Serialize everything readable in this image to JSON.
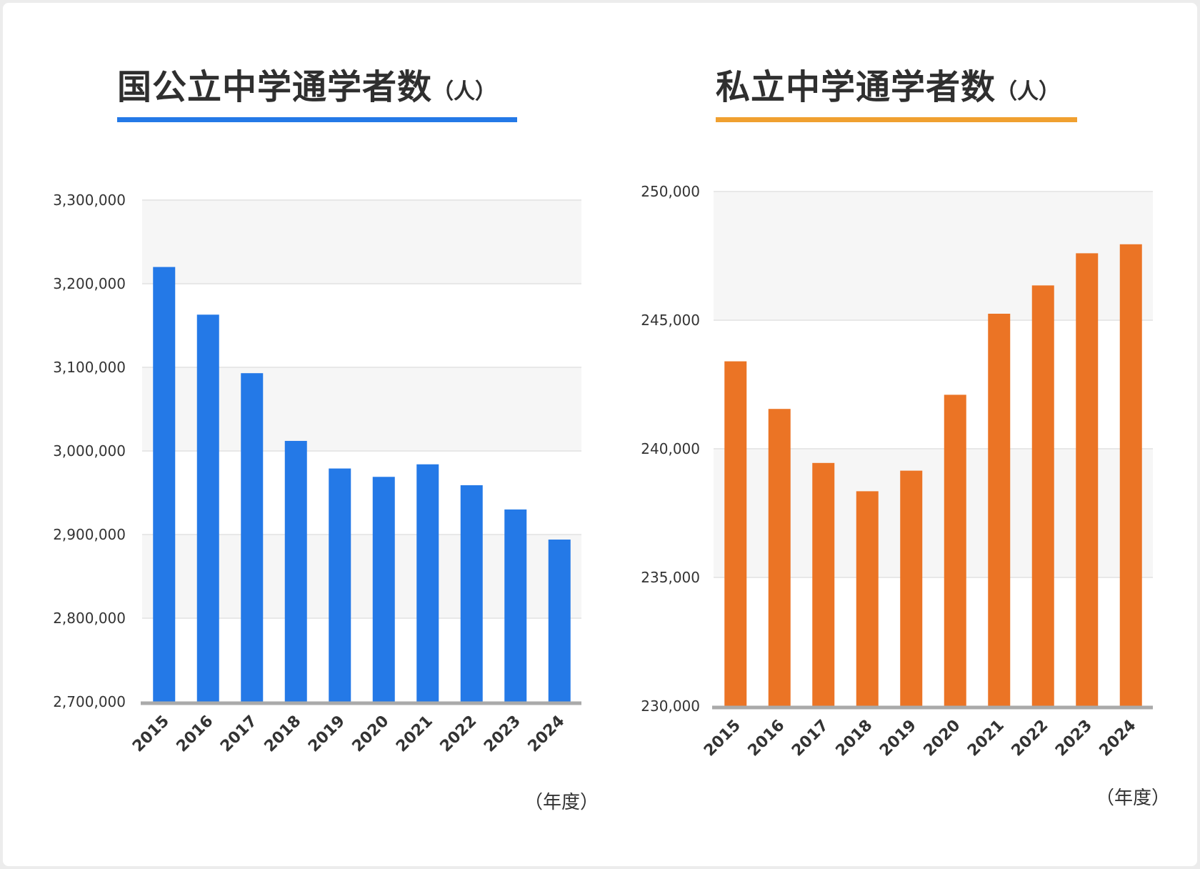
{
  "chart_data": [
    {
      "type": "bar",
      "title": "国公立中学通学者数",
      "title_unit": "（人）",
      "xlabel": "（年度）",
      "categories": [
        "2015",
        "2016",
        "2017",
        "2018",
        "2019",
        "2020",
        "2021",
        "2022",
        "2023",
        "2024"
      ],
      "values": [
        3220000,
        3163000,
        3093000,
        3012000,
        2979000,
        2969000,
        2984000,
        2959000,
        2930000,
        2894000
      ],
      "ylim": [
        2700000,
        3300000
      ],
      "yticks": [
        "2,700,000",
        "2,800,000",
        "2,900,000",
        "3,000,000",
        "3,100,000",
        "3,200,000",
        "3,300,000"
      ],
      "color": "#2479e7",
      "accent": "#2479e7",
      "band_color": "#f6f6f6",
      "grid": true
    },
    {
      "type": "bar",
      "title": "私立中学通学者数",
      "title_unit": "（人）",
      "xlabel": "（年度）",
      "categories": [
        "2015",
        "2016",
        "2017",
        "2018",
        "2019",
        "2020",
        "2021",
        "2022",
        "2023",
        "2024"
      ],
      "values": [
        243400,
        241550,
        239450,
        238350,
        239150,
        242100,
        245250,
        246350,
        247600,
        247950
      ],
      "ylim": [
        230000,
        250000
      ],
      "yticks": [
        "230,000",
        "235,000",
        "240,000",
        "245,000",
        "250,000"
      ],
      "color": "#eb7425",
      "accent": "#f0a030",
      "band_color": "#f6f6f6",
      "grid": true
    }
  ]
}
